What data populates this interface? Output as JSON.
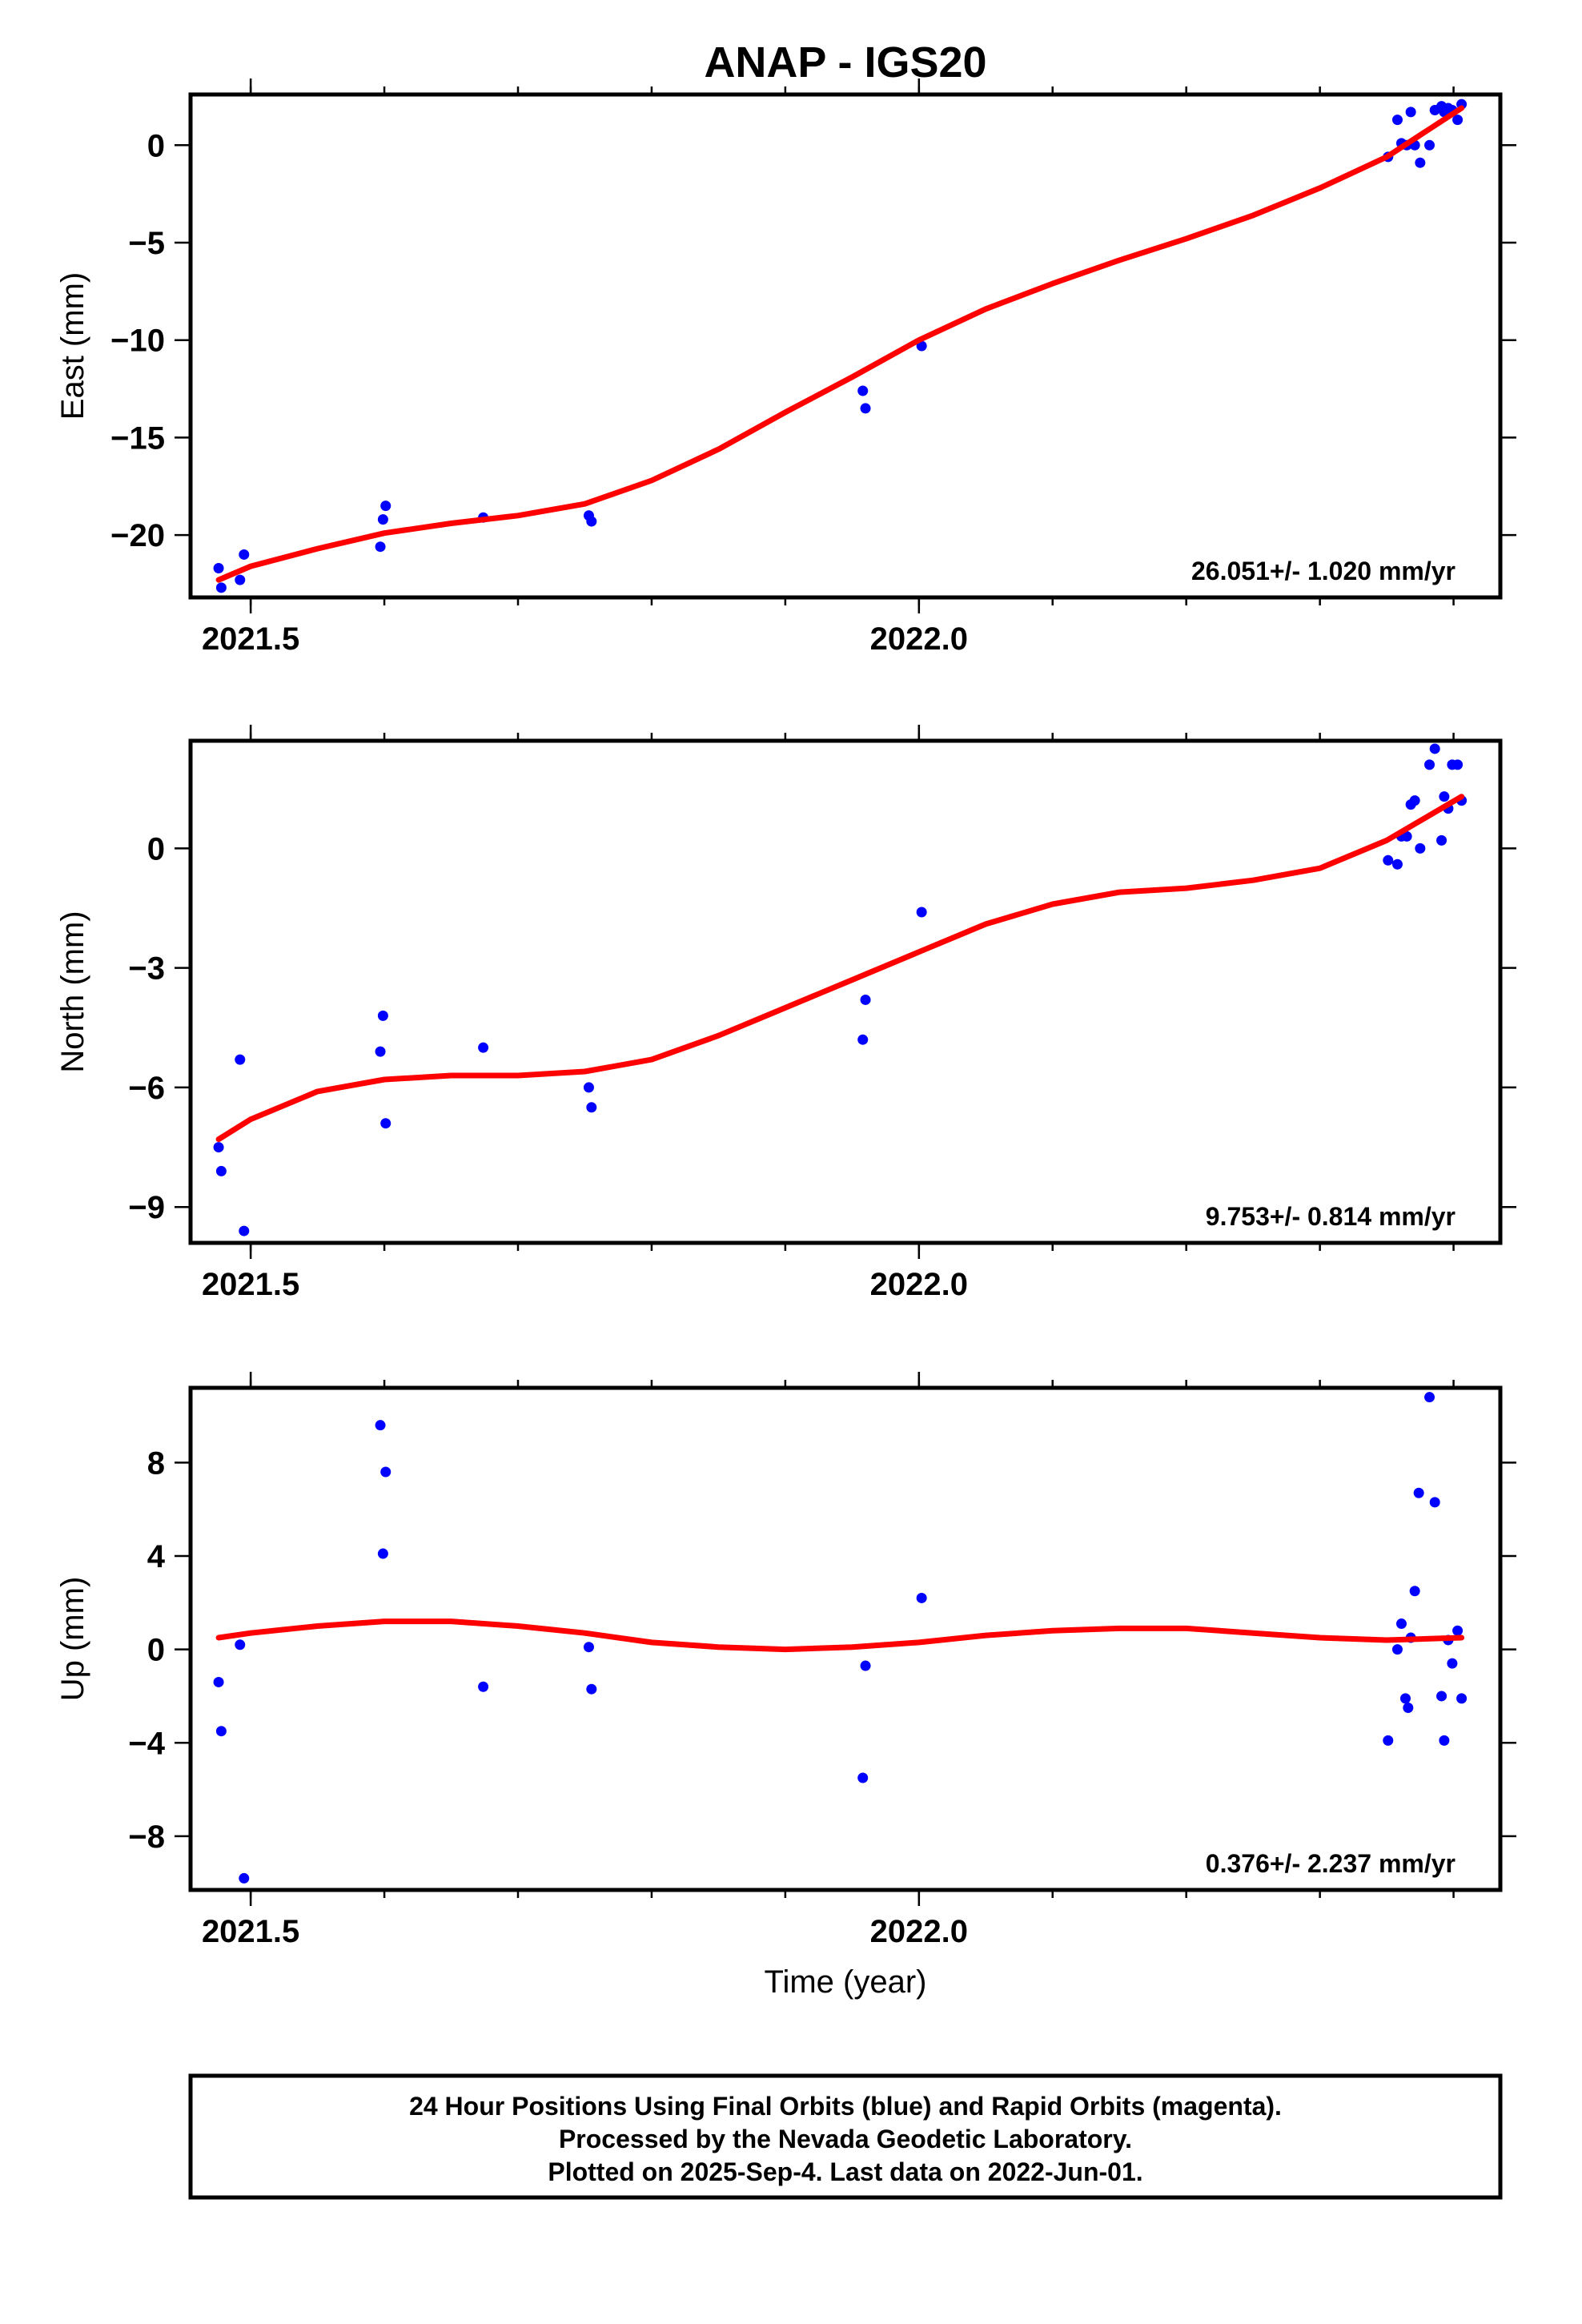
{
  "chart_data": {
    "type": "scatter",
    "title": "ANAP - IGS20",
    "xlabel": "Time (year)",
    "xlim": [
      2021.455,
      2022.435
    ],
    "x_ticks": [
      2021.5,
      2022.0
    ],
    "x_tick_labels": [
      "2021.5",
      "2022.0"
    ],
    "x_minor_step": 0.1,
    "grid": false,
    "colors": {
      "final_orbits": "#0000ff",
      "rapid_orbits": "#ff00ff",
      "fit": "#ff0000"
    },
    "panels": [
      {
        "ylabel": "East (mm)",
        "ylim": [
          -23.2,
          2.6
        ],
        "y_ticks": [
          0,
          -5,
          -10,
          -15,
          -20
        ],
        "y_tick_labels": [
          "0",
          "−5",
          "−10",
          "−15",
          "−20"
        ],
        "rate": "26.051+/- 1.020 mm/yr",
        "series": [
          {
            "type": "scatter",
            "x": [
              2021.476,
              2021.478,
              2021.492,
              2021.495,
              2021.597,
              2021.599,
              2021.601,
              2021.674,
              2021.753,
              2021.755,
              2021.958,
              2021.96,
              2022.002,
              2022.351,
              2022.358,
              2022.361,
              2022.365,
              2022.368,
              2022.371,
              2022.375,
              2022.382,
              2022.386,
              2022.391,
              2022.393,
              2022.396,
              2022.399,
              2022.403,
              2022.406
            ],
            "y": [
              -21.7,
              -22.7,
              -22.3,
              -21.0,
              -20.6,
              -19.2,
              -18.5,
              -19.1,
              -19.0,
              -19.3,
              -12.6,
              -13.5,
              -10.3,
              -0.6,
              1.3,
              0.1,
              0.0,
              1.7,
              0.0,
              -0.9,
              0.0,
              1.8,
              2.0,
              1.7,
              1.9,
              1.8,
              1.3,
              2.1
            ]
          },
          {
            "type": "line",
            "x": [
              2021.476,
              2021.5,
              2021.55,
              2021.6,
              2021.65,
              2021.7,
              2021.75,
              2021.8,
              2021.85,
              2021.9,
              2021.95,
              2022.0,
              2022.05,
              2022.1,
              2022.15,
              2022.2,
              2022.25,
              2022.3,
              2022.35,
              2022.406
            ],
            "y": [
              -22.3,
              -21.6,
              -20.7,
              -19.9,
              -19.4,
              -19.0,
              -18.4,
              -17.2,
              -15.6,
              -13.7,
              -11.9,
              -10.0,
              -8.4,
              -7.1,
              -5.9,
              -4.8,
              -3.6,
              -2.2,
              -0.6,
              1.9
            ]
          }
        ]
      },
      {
        "ylabel": "North (mm)",
        "ylim": [
          -9.9,
          2.7
        ],
        "y_ticks": [
          0,
          -3,
          -6,
          -9
        ],
        "y_tick_labels": [
          "0",
          "−3",
          "−6",
          "−9"
        ],
        "rate": "9.753+/- 0.814 mm/yr",
        "series": [
          {
            "type": "scatter",
            "x": [
              2021.476,
              2021.478,
              2021.492,
              2021.495,
              2021.597,
              2021.599,
              2021.601,
              2021.674,
              2021.753,
              2021.755,
              2021.958,
              2021.96,
              2022.002,
              2022.351,
              2022.358,
              2022.361,
              2022.365,
              2022.368,
              2022.371,
              2022.375,
              2022.382,
              2022.386,
              2022.391,
              2022.393,
              2022.396,
              2022.399,
              2022.403,
              2022.406
            ],
            "y": [
              -7.5,
              -8.1,
              -5.3,
              -9.6,
              -5.1,
              -4.2,
              -6.9,
              -5.0,
              -6.0,
              -6.5,
              -4.8,
              -3.8,
              -1.6,
              -0.3,
              -0.4,
              0.3,
              0.3,
              1.1,
              1.2,
              0.0,
              2.1,
              2.5,
              0.2,
              1.3,
              1.0,
              2.1,
              2.1,
              1.2
            ]
          },
          {
            "type": "line",
            "x": [
              2021.476,
              2021.5,
              2021.55,
              2021.6,
              2021.65,
              2021.7,
              2021.75,
              2021.8,
              2021.85,
              2021.9,
              2021.95,
              2022.0,
              2022.05,
              2022.1,
              2022.15,
              2022.2,
              2022.25,
              2022.3,
              2022.35,
              2022.406
            ],
            "y": [
              -7.3,
              -6.8,
              -6.1,
              -5.8,
              -5.7,
              -5.7,
              -5.6,
              -5.3,
              -4.7,
              -4.0,
              -3.3,
              -2.6,
              -1.9,
              -1.4,
              -1.1,
              -1.0,
              -0.8,
              -0.5,
              0.2,
              1.3
            ]
          }
        ]
      },
      {
        "ylabel": "Up (mm)",
        "ylim": [
          -10.3,
          11.2
        ],
        "y_ticks": [
          8,
          4,
          0,
          -4,
          -8
        ],
        "y_tick_labels": [
          "8",
          "4",
          "0",
          "−4",
          "−8"
        ],
        "rate": "0.376+/- 2.237 mm/yr",
        "series": [
          {
            "type": "scatter",
            "x": [
              2021.476,
              2021.478,
              2021.492,
              2021.495,
              2021.597,
              2021.599,
              2021.601,
              2021.674,
              2021.753,
              2021.755,
              2021.958,
              2021.96,
              2022.002,
              2022.351,
              2022.358,
              2022.361,
              2022.364,
              2022.366,
              2022.368,
              2022.371,
              2022.374,
              2022.382,
              2022.386,
              2022.391,
              2022.393,
              2022.396,
              2022.399,
              2022.403,
              2022.406
            ],
            "y": [
              -1.4,
              -3.5,
              0.2,
              -9.8,
              9.6,
              4.1,
              7.6,
              -1.6,
              0.1,
              -1.7,
              -5.5,
              -0.7,
              2.2,
              -3.9,
              0.0,
              1.1,
              -2.1,
              -2.5,
              0.5,
              2.5,
              6.7,
              10.8,
              6.3,
              -2.0,
              -3.9,
              0.4,
              -0.6,
              0.8,
              -2.1
            ]
          },
          {
            "type": "line",
            "x": [
              2021.476,
              2021.5,
              2021.55,
              2021.6,
              2021.65,
              2021.7,
              2021.75,
              2021.8,
              2021.85,
              2021.9,
              2021.95,
              2022.0,
              2022.05,
              2022.1,
              2022.15,
              2022.2,
              2022.25,
              2022.3,
              2022.35,
              2022.406
            ],
            "y": [
              0.5,
              0.7,
              1.0,
              1.2,
              1.2,
              1.0,
              0.7,
              0.3,
              0.1,
              0.0,
              0.1,
              0.3,
              0.6,
              0.8,
              0.9,
              0.9,
              0.7,
              0.5,
              0.4,
              0.5
            ]
          }
        ]
      }
    ]
  },
  "caption": {
    "line1": "24 Hour Positions Using Final Orbits (blue) and Rapid Orbits (magenta).",
    "line2": "Processed by the Nevada Geodetic Laboratory.",
    "line3": "Plotted on 2025-Sep-4. Last data on 2022-Jun-01."
  }
}
